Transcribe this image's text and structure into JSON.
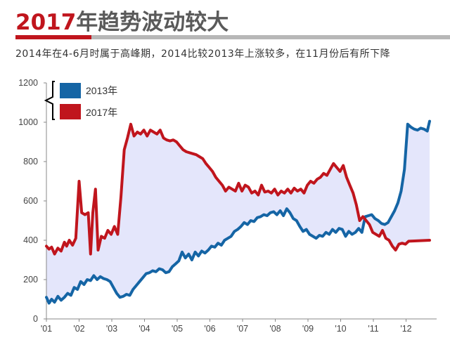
{
  "header": {
    "title_accent": "2017",
    "title_rest": "年趋势波动较大",
    "subtitle": "2014年在4-6月时属于高峰期，2014比较2013年上涨较多，在11月份后有所下降"
  },
  "colors": {
    "accent": "#c0151d",
    "series_2013": "#1565a5",
    "series_2017": "#c0151d",
    "fill_between": "#e4e6fb"
  },
  "chart_data": {
    "type": "line",
    "title": "2017年趋势波动较大",
    "subtitle": "2014年在4-6月时属于高峰期，2014比较2013年上涨较多，在11月份后有所下降",
    "xlabel": "",
    "ylabel": "",
    "ylim": [
      0,
      1200
    ],
    "yticks": [
      0,
      200,
      400,
      600,
      800,
      1000,
      1200
    ],
    "xlim": [
      1,
      13
    ],
    "xticks": [
      {
        "x": 1,
        "label": "'01"
      },
      {
        "x": 2,
        "label": "'02"
      },
      {
        "x": 3,
        "label": "'03"
      },
      {
        "x": 4,
        "label": "'04"
      },
      {
        "x": 5,
        "label": "'05"
      },
      {
        "x": 6,
        "label": "'06"
      },
      {
        "x": 7,
        "label": "'07"
      },
      {
        "x": 8,
        "label": "'08"
      },
      {
        "x": 9,
        "label": "'09"
      },
      {
        "x": 10,
        "label": "'10"
      },
      {
        "x": 11,
        "label": "'11"
      },
      {
        "x": 12,
        "label": "'12"
      }
    ],
    "grid": false,
    "legend": "top-left",
    "series": [
      {
        "name": "2013年",
        "color": "#1565a5",
        "points": [
          [
            1.0,
            110
          ],
          [
            1.08,
            80
          ],
          [
            1.16,
            100
          ],
          [
            1.25,
            85
          ],
          [
            1.35,
            115
          ],
          [
            1.45,
            95
          ],
          [
            1.55,
            110
          ],
          [
            1.65,
            130
          ],
          [
            1.75,
            120
          ],
          [
            1.85,
            160
          ],
          [
            1.95,
            150
          ],
          [
            2.05,
            190
          ],
          [
            2.15,
            175
          ],
          [
            2.25,
            200
          ],
          [
            2.35,
            195
          ],
          [
            2.45,
            220
          ],
          [
            2.55,
            200
          ],
          [
            2.65,
            215
          ],
          [
            2.75,
            205
          ],
          [
            2.85,
            200
          ],
          [
            2.95,
            190
          ],
          [
            3.05,
            160
          ],
          [
            3.15,
            130
          ],
          [
            3.25,
            110
          ],
          [
            3.35,
            115
          ],
          [
            3.45,
            125
          ],
          [
            3.55,
            120
          ],
          [
            3.65,
            150
          ],
          [
            3.75,
            170
          ],
          [
            3.85,
            190
          ],
          [
            3.95,
            210
          ],
          [
            4.05,
            230
          ],
          [
            4.15,
            235
          ],
          [
            4.25,
            245
          ],
          [
            4.35,
            240
          ],
          [
            4.45,
            255
          ],
          [
            4.55,
            250
          ],
          [
            4.65,
            235
          ],
          [
            4.75,
            240
          ],
          [
            4.85,
            265
          ],
          [
            4.95,
            280
          ],
          [
            5.05,
            295
          ],
          [
            5.15,
            340
          ],
          [
            5.25,
            310
          ],
          [
            5.35,
            330
          ],
          [
            5.45,
            300
          ],
          [
            5.55,
            340
          ],
          [
            5.65,
            320
          ],
          [
            5.75,
            345
          ],
          [
            5.85,
            335
          ],
          [
            5.95,
            350
          ],
          [
            6.05,
            370
          ],
          [
            6.15,
            365
          ],
          [
            6.25,
            385
          ],
          [
            6.35,
            375
          ],
          [
            6.45,
            400
          ],
          [
            6.55,
            410
          ],
          [
            6.65,
            420
          ],
          [
            6.75,
            445
          ],
          [
            6.85,
            455
          ],
          [
            6.95,
            470
          ],
          [
            7.05,
            490
          ],
          [
            7.15,
            480
          ],
          [
            7.25,
            500
          ],
          [
            7.35,
            495
          ],
          [
            7.45,
            515
          ],
          [
            7.55,
            520
          ],
          [
            7.65,
            530
          ],
          [
            7.75,
            525
          ],
          [
            7.85,
            540
          ],
          [
            7.95,
            545
          ],
          [
            8.05,
            530
          ],
          [
            8.15,
            550
          ],
          [
            8.25,
            525
          ],
          [
            8.35,
            560
          ],
          [
            8.45,
            540
          ],
          [
            8.55,
            510
          ],
          [
            8.65,
            500
          ],
          [
            8.75,
            470
          ],
          [
            8.85,
            445
          ],
          [
            8.95,
            455
          ],
          [
            9.05,
            430
          ],
          [
            9.15,
            420
          ],
          [
            9.25,
            410
          ],
          [
            9.35,
            425
          ],
          [
            9.45,
            420
          ],
          [
            9.55,
            440
          ],
          [
            9.65,
            430
          ],
          [
            9.75,
            455
          ],
          [
            9.85,
            440
          ],
          [
            9.95,
            460
          ],
          [
            10.05,
            455
          ],
          [
            10.15,
            420
          ],
          [
            10.25,
            445
          ],
          [
            10.35,
            430
          ],
          [
            10.45,
            440
          ],
          [
            10.55,
            460
          ],
          [
            10.65,
            440
          ],
          [
            10.75,
            520
          ],
          [
            10.85,
            525
          ],
          [
            10.95,
            530
          ],
          [
            11.05,
            510
          ],
          [
            11.15,
            500
          ],
          [
            11.25,
            485
          ],
          [
            11.35,
            480
          ],
          [
            11.45,
            490
          ],
          [
            11.55,
            520
          ],
          [
            11.65,
            550
          ],
          [
            11.75,
            590
          ],
          [
            11.85,
            650
          ],
          [
            11.95,
            760
          ],
          [
            12.05,
            990
          ],
          [
            12.15,
            975
          ],
          [
            12.25,
            965
          ],
          [
            12.35,
            960
          ],
          [
            12.45,
            970
          ],
          [
            12.55,
            965
          ],
          [
            12.65,
            955
          ],
          [
            12.72,
            1005
          ]
        ]
      },
      {
        "name": "2017年",
        "color": "#c0151d",
        "points": [
          [
            1.0,
            370
          ],
          [
            1.08,
            355
          ],
          [
            1.16,
            365
          ],
          [
            1.25,
            330
          ],
          [
            1.35,
            360
          ],
          [
            1.45,
            345
          ],
          [
            1.55,
            390
          ],
          [
            1.62,
            370
          ],
          [
            1.7,
            400
          ],
          [
            1.8,
            375
          ],
          [
            1.9,
            410
          ],
          [
            2.0,
            700
          ],
          [
            2.08,
            540
          ],
          [
            2.18,
            530
          ],
          [
            2.28,
            540
          ],
          [
            2.35,
            330
          ],
          [
            2.42,
            540
          ],
          [
            2.5,
            660
          ],
          [
            2.58,
            350
          ],
          [
            2.68,
            420
          ],
          [
            2.78,
            410
          ],
          [
            2.88,
            450
          ],
          [
            2.98,
            430
          ],
          [
            3.08,
            470
          ],
          [
            3.18,
            430
          ],
          [
            3.28,
            620
          ],
          [
            3.38,
            860
          ],
          [
            3.48,
            920
          ],
          [
            3.58,
            990
          ],
          [
            3.68,
            930
          ],
          [
            3.78,
            950
          ],
          [
            3.88,
            940
          ],
          [
            3.98,
            960
          ],
          [
            4.08,
            930
          ],
          [
            4.18,
            960
          ],
          [
            4.28,
            950
          ],
          [
            4.38,
            940
          ],
          [
            4.48,
            960
          ],
          [
            4.58,
            920
          ],
          [
            4.68,
            910
          ],
          [
            4.78,
            905
          ],
          [
            4.88,
            910
          ],
          [
            4.98,
            900
          ],
          [
            5.08,
            880
          ],
          [
            5.18,
            860
          ],
          [
            5.28,
            850
          ],
          [
            5.38,
            845
          ],
          [
            5.48,
            840
          ],
          [
            5.58,
            835
          ],
          [
            5.68,
            825
          ],
          [
            5.78,
            815
          ],
          [
            5.88,
            790
          ],
          [
            5.98,
            770
          ],
          [
            6.08,
            750
          ],
          [
            6.18,
            720
          ],
          [
            6.28,
            700
          ],
          [
            6.38,
            680
          ],
          [
            6.48,
            650
          ],
          [
            6.58,
            670
          ],
          [
            6.68,
            660
          ],
          [
            6.78,
            650
          ],
          [
            6.88,
            690
          ],
          [
            6.98,
            650
          ],
          [
            7.08,
            680
          ],
          [
            7.18,
            670
          ],
          [
            7.28,
            640
          ],
          [
            7.38,
            650
          ],
          [
            7.48,
            630
          ],
          [
            7.58,
            680
          ],
          [
            7.68,
            645
          ],
          [
            7.78,
            650
          ],
          [
            7.88,
            640
          ],
          [
            7.98,
            660
          ],
          [
            8.08,
            630
          ],
          [
            8.18,
            650
          ],
          [
            8.28,
            640
          ],
          [
            8.38,
            660
          ],
          [
            8.48,
            640
          ],
          [
            8.58,
            665
          ],
          [
            8.68,
            650
          ],
          [
            8.78,
            660
          ],
          [
            8.88,
            640
          ],
          [
            8.98,
            680
          ],
          [
            9.08,
            700
          ],
          [
            9.18,
            690
          ],
          [
            9.28,
            710
          ],
          [
            9.38,
            720
          ],
          [
            9.48,
            740
          ],
          [
            9.58,
            730
          ],
          [
            9.68,
            760
          ],
          [
            9.78,
            790
          ],
          [
            9.88,
            770
          ],
          [
            9.98,
            750
          ],
          [
            10.08,
            780
          ],
          [
            10.18,
            720
          ],
          [
            10.28,
            680
          ],
          [
            10.38,
            640
          ],
          [
            10.48,
            580
          ],
          [
            10.58,
            500
          ],
          [
            10.68,
            520
          ],
          [
            10.78,
            500
          ],
          [
            10.88,
            480
          ],
          [
            10.98,
            440
          ],
          [
            11.08,
            430
          ],
          [
            11.18,
            420
          ],
          [
            11.28,
            450
          ],
          [
            11.38,
            410
          ],
          [
            11.48,
            400
          ],
          [
            11.58,
            370
          ],
          [
            11.68,
            350
          ],
          [
            11.78,
            380
          ],
          [
            11.88,
            385
          ],
          [
            11.98,
            380
          ],
          [
            12.08,
            395
          ],
          [
            12.72,
            400
          ]
        ]
      }
    ]
  }
}
